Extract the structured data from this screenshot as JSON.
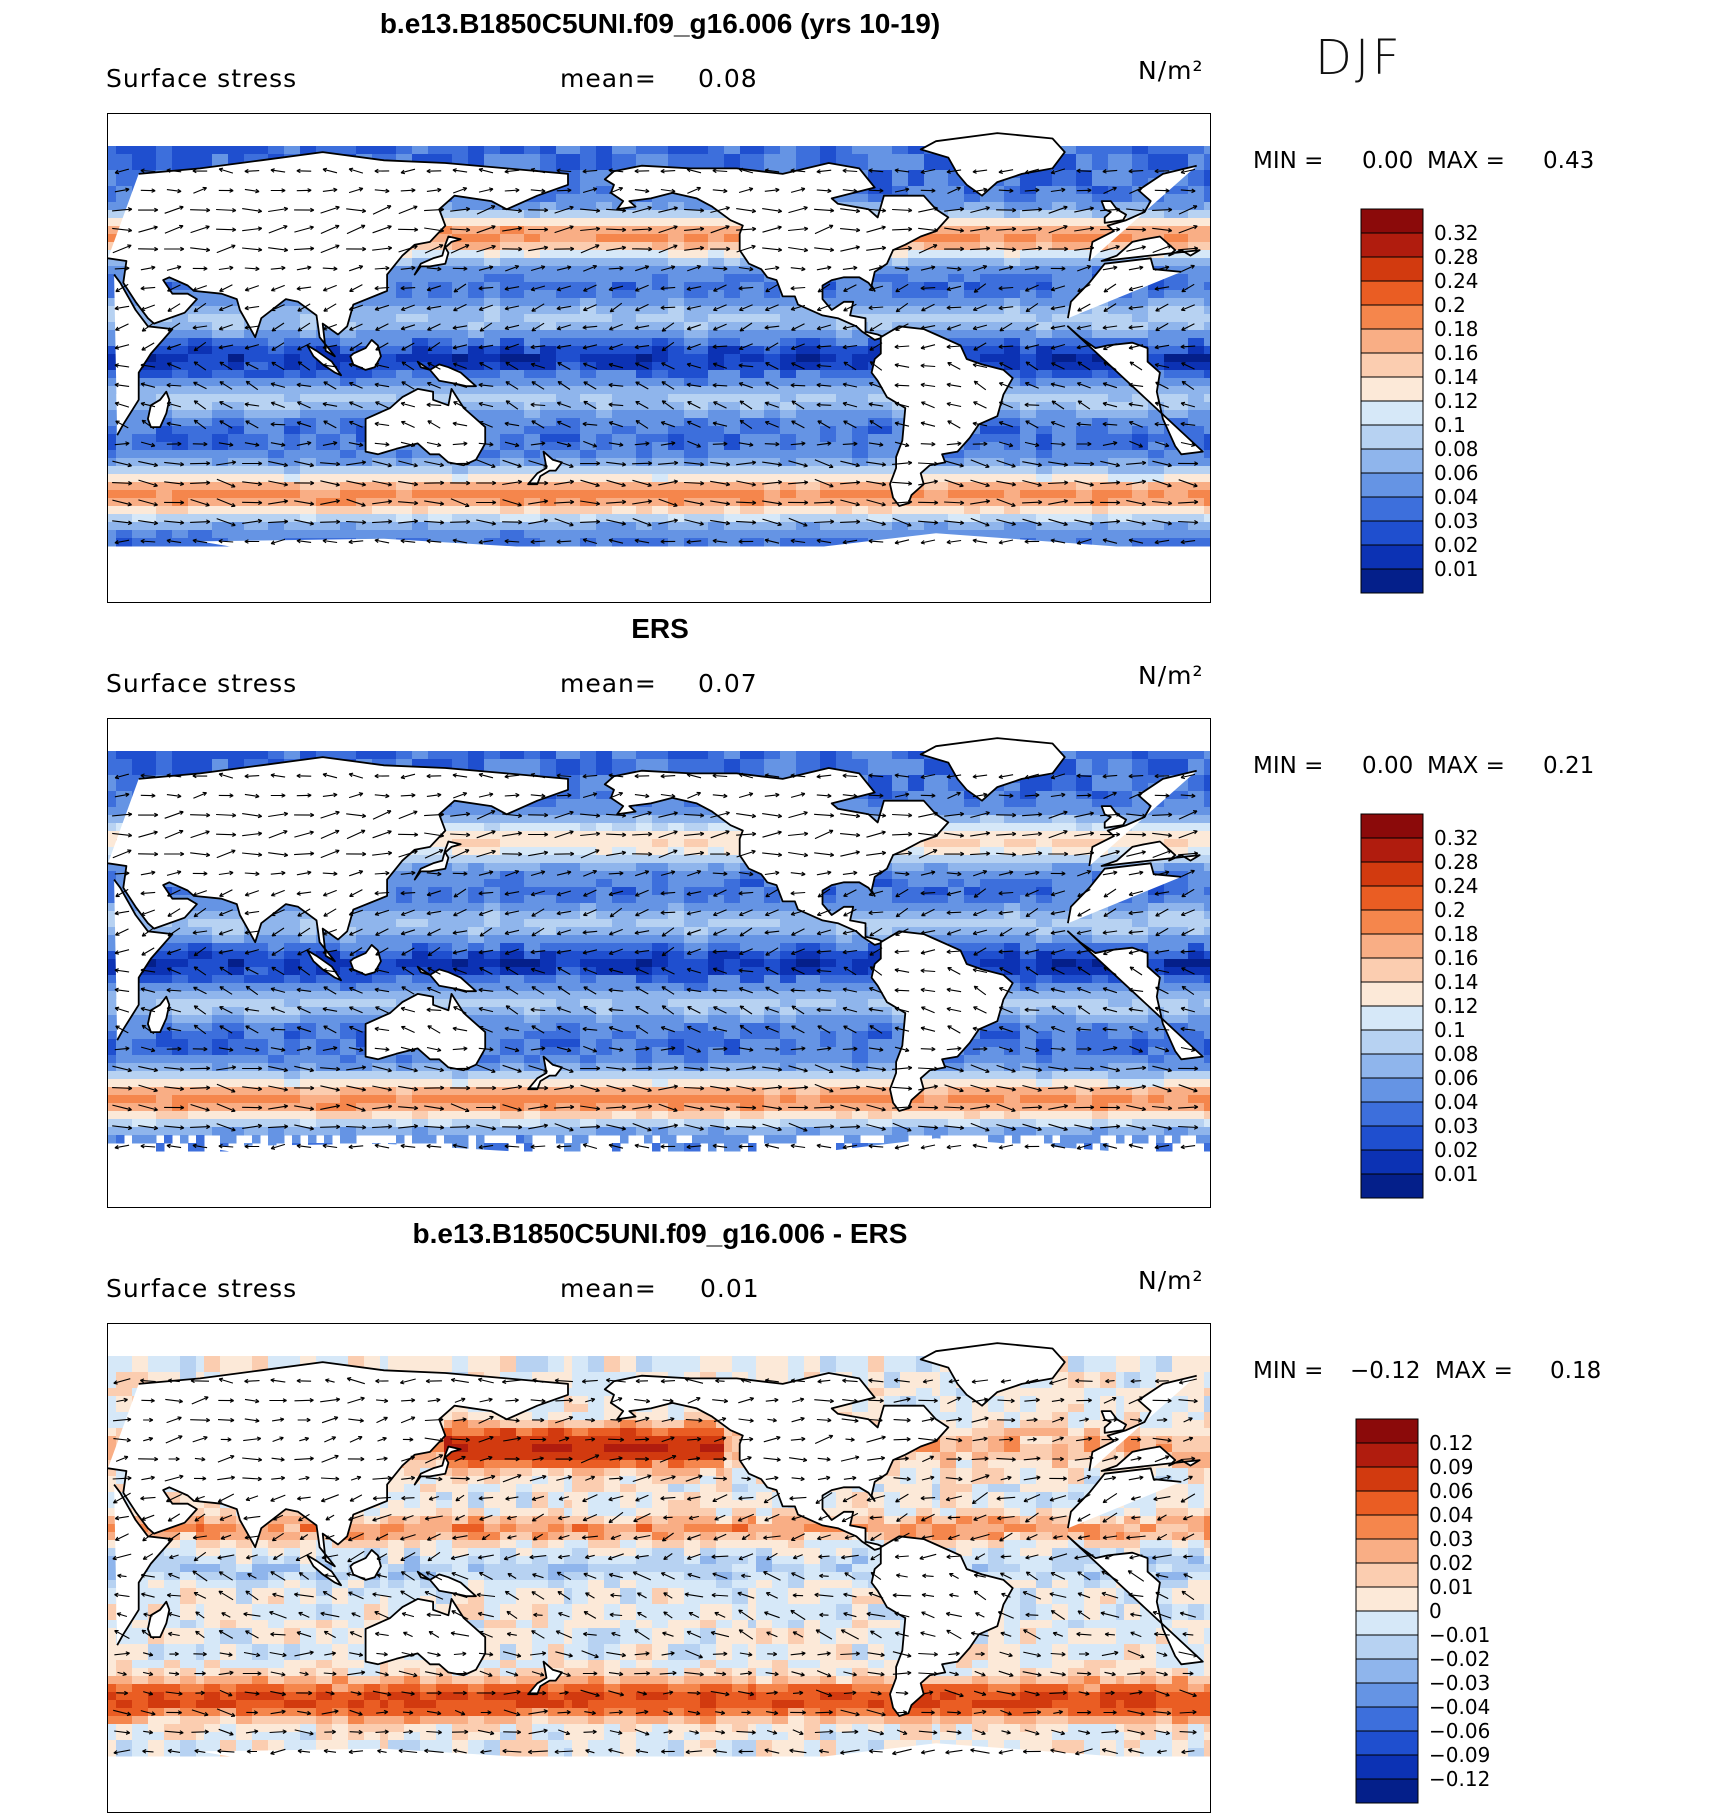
{
  "season": "DJF",
  "panels": [
    {
      "title": "b.e13.B1850C5UNI.f09_g16.006 (yrs 10-19)",
      "variable": "Surface stress",
      "mean_label": "mean=",
      "mean_value": "0.08",
      "units": "N/m²",
      "min_label": "MIN =",
      "min_value": "0.00",
      "max_label": "MAX =",
      "max_value": "0.43",
      "colorbar_levels": [
        "0.32",
        "0.28",
        "0.24",
        "0.2",
        "0.18",
        "0.16",
        "0.14",
        "0.12",
        "0.1",
        "0.08",
        "0.06",
        "0.04",
        "0.03",
        "0.02",
        "0.01"
      ],
      "colorbar_colors": [
        "#8b0a0a",
        "#b01c0e",
        "#d23a0f",
        "#ea5d23",
        "#f5864c",
        "#f9ae85",
        "#fbcdb0",
        "#fce9d8",
        "#d6e8f8",
        "#b7d2f2",
        "#8fb5ec",
        "#6594e4",
        "#3d6fdc",
        "#1f4fcf",
        "#0c32b4",
        "#041f8a"
      ],
      "field_type": "magnitude"
    },
    {
      "title": "ERS",
      "variable": "Surface stress",
      "mean_label": "mean=",
      "mean_value": "0.07",
      "units": "N/m²",
      "min_label": "MIN =",
      "min_value": "0.00",
      "max_label": "MAX =",
      "max_value": "0.21",
      "colorbar_levels": [
        "0.32",
        "0.28",
        "0.24",
        "0.2",
        "0.18",
        "0.16",
        "0.14",
        "0.12",
        "0.1",
        "0.08",
        "0.06",
        "0.04",
        "0.03",
        "0.02",
        "0.01"
      ],
      "colorbar_colors": [
        "#8b0a0a",
        "#b01c0e",
        "#d23a0f",
        "#ea5d23",
        "#f5864c",
        "#f9ae85",
        "#fbcdb0",
        "#fce9d8",
        "#d6e8f8",
        "#b7d2f2",
        "#8fb5ec",
        "#6594e4",
        "#3d6fdc",
        "#1f4fcf",
        "#0c32b4",
        "#041f8a"
      ],
      "field_type": "magnitude_obs"
    },
    {
      "title": "b.e13.B1850C5UNI.f09_g16.006 - ERS",
      "variable": "Surface stress",
      "mean_label": "mean=",
      "mean_value": "0.01",
      "units": "N/m²",
      "min_label": "MIN =",
      "min_value": "−0.12",
      "max_label": "MAX =",
      "max_value": "0.18",
      "colorbar_levels": [
        "0.12",
        "0.09",
        "0.06",
        "0.04",
        "0.03",
        "0.02",
        "0.01",
        "0",
        "−0.01",
        "−0.02",
        "−0.03",
        "−0.04",
        "−0.06",
        "−0.09",
        "−0.12"
      ],
      "colorbar_colors": [
        "#8b0a0a",
        "#b01c0e",
        "#d23a0f",
        "#ea5d23",
        "#f5864c",
        "#f9ae85",
        "#fbcdb0",
        "#fce9d8",
        "#d6e8f8",
        "#b7d2f2",
        "#8fb5ec",
        "#6594e4",
        "#3d6fdc",
        "#1f4fcf",
        "#0c32b4",
        "#041f8a"
      ],
      "field_type": "difference"
    }
  ]
}
